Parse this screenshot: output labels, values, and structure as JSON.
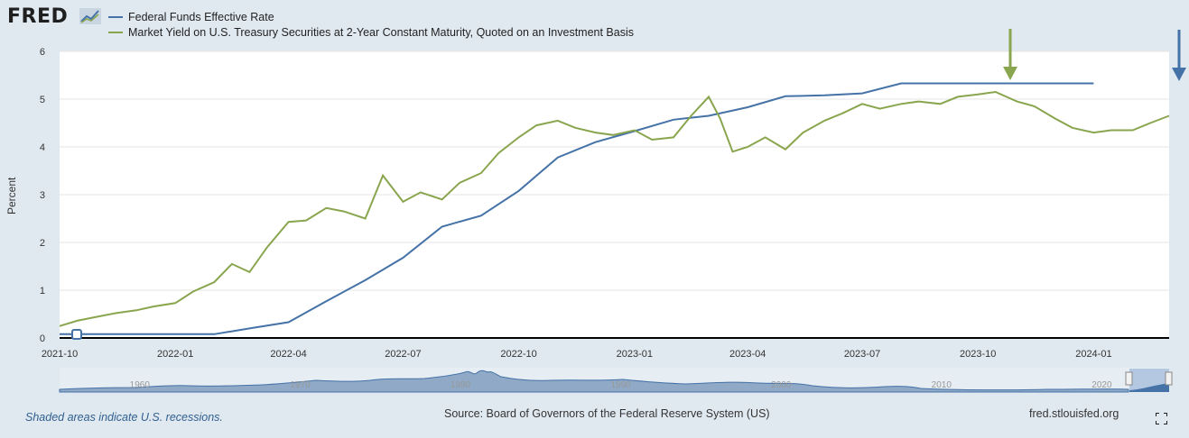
{
  "brand": {
    "logo_text": "FRED",
    "logo_icon": "fred-chart-icon"
  },
  "legend": [
    {
      "label": "Federal Funds Effective Rate",
      "color": "#4572a7"
    },
    {
      "label": "Market Yield on U.S. Treasury Securities at 2-Year Constant Maturity, Quoted on an Investment Basis",
      "color": "#89a54e"
    }
  ],
  "footer": {
    "recession_note": "Shaded areas indicate U.S. recessions.",
    "source": "Source: Board of Governors of the Federal Reserve System (US)",
    "site": "fred.stlouisfed.org"
  },
  "chart_data": {
    "type": "line",
    "ylabel": "Percent",
    "ylim": [
      0,
      6
    ],
    "yticks": [
      0,
      1,
      2,
      3,
      4,
      5,
      6
    ],
    "x_range": [
      "2021-10-01",
      "2024-03-01"
    ],
    "xticks": [
      {
        "date": "2021-10-01",
        "label": "2021-10"
      },
      {
        "date": "2022-01-01",
        "label": "2022-01"
      },
      {
        "date": "2022-04-01",
        "label": "2022-04"
      },
      {
        "date": "2022-07-01",
        "label": "2022-07"
      },
      {
        "date": "2022-10-01",
        "label": "2022-10"
      },
      {
        "date": "2023-01-01",
        "label": "2023-01"
      },
      {
        "date": "2023-04-01",
        "label": "2023-04"
      },
      {
        "date": "2023-07-01",
        "label": "2023-07"
      },
      {
        "date": "2023-10-01",
        "label": "2023-10"
      },
      {
        "date": "2024-01-01",
        "label": "2024-01"
      }
    ],
    "grid": true,
    "series": [
      {
        "name": "Federal Funds Effective Rate",
        "color": "#4572a7",
        "points": [
          [
            "2021-10-01",
            0.08
          ],
          [
            "2022-02-01",
            0.08
          ],
          [
            "2022-03-01",
            0.2
          ],
          [
            "2022-04-01",
            0.33
          ],
          [
            "2022-05-01",
            0.77
          ],
          [
            "2022-06-01",
            1.21
          ],
          [
            "2022-07-01",
            1.68
          ],
          [
            "2022-08-01",
            2.33
          ],
          [
            "2022-09-01",
            2.56
          ],
          [
            "2022-10-01",
            3.08
          ],
          [
            "2022-11-01",
            3.78
          ],
          [
            "2022-12-01",
            4.1
          ],
          [
            "2023-01-01",
            4.33
          ],
          [
            "2023-02-01",
            4.57
          ],
          [
            "2023-03-01",
            4.65
          ],
          [
            "2023-04-01",
            4.83
          ],
          [
            "2023-05-01",
            5.06
          ],
          [
            "2023-06-01",
            5.08
          ],
          [
            "2023-07-01",
            5.12
          ],
          [
            "2023-08-01",
            5.33
          ],
          [
            "2023-09-01",
            5.33
          ],
          [
            "2023-10-01",
            5.33
          ],
          [
            "2023-11-01",
            5.33
          ],
          [
            "2023-12-01",
            5.33
          ],
          [
            "2024-01-01",
            5.33
          ]
        ]
      },
      {
        "name": "Market Yield on U.S. Treasury Securities at 2-Year Constant Maturity, Quoted on an Investment Basis",
        "color": "#89a54e",
        "points": [
          [
            "2021-10-01",
            0.25
          ],
          [
            "2021-10-15",
            0.36
          ],
          [
            "2021-11-01",
            0.45
          ],
          [
            "2021-11-15",
            0.52
          ],
          [
            "2021-12-01",
            0.58
          ],
          [
            "2021-12-15",
            0.66
          ],
          [
            "2022-01-01",
            0.73
          ],
          [
            "2022-01-15",
            0.97
          ],
          [
            "2022-02-01",
            1.17
          ],
          [
            "2022-02-15",
            1.55
          ],
          [
            "2022-03-01",
            1.38
          ],
          [
            "2022-03-15",
            1.9
          ],
          [
            "2022-04-01",
            2.43
          ],
          [
            "2022-04-15",
            2.46
          ],
          [
            "2022-05-01",
            2.72
          ],
          [
            "2022-05-15",
            2.65
          ],
          [
            "2022-06-01",
            2.5
          ],
          [
            "2022-06-15",
            3.4
          ],
          [
            "2022-07-01",
            2.85
          ],
          [
            "2022-07-15",
            3.05
          ],
          [
            "2022-08-01",
            2.9
          ],
          [
            "2022-08-15",
            3.25
          ],
          [
            "2022-09-01",
            3.45
          ],
          [
            "2022-09-15",
            3.87
          ],
          [
            "2022-10-01",
            4.2
          ],
          [
            "2022-10-15",
            4.45
          ],
          [
            "2022-11-01",
            4.55
          ],
          [
            "2022-11-15",
            4.4
          ],
          [
            "2022-12-01",
            4.3
          ],
          [
            "2022-12-15",
            4.25
          ],
          [
            "2023-01-01",
            4.35
          ],
          [
            "2023-01-15",
            4.15
          ],
          [
            "2023-02-01",
            4.2
          ],
          [
            "2023-02-15",
            4.65
          ],
          [
            "2023-03-01",
            5.05
          ],
          [
            "2023-03-10",
            4.6
          ],
          [
            "2023-03-20",
            3.9
          ],
          [
            "2023-04-01",
            4.0
          ],
          [
            "2023-04-15",
            4.2
          ],
          [
            "2023-05-01",
            3.95
          ],
          [
            "2023-05-15",
            4.3
          ],
          [
            "2023-06-01",
            4.55
          ],
          [
            "2023-06-15",
            4.7
          ],
          [
            "2023-07-01",
            4.9
          ],
          [
            "2023-07-15",
            4.8
          ],
          [
            "2023-08-01",
            4.9
          ],
          [
            "2023-08-15",
            4.95
          ],
          [
            "2023-09-01",
            4.9
          ],
          [
            "2023-09-15",
            5.05
          ],
          [
            "2023-10-01",
            5.1
          ],
          [
            "2023-10-15",
            5.15
          ],
          [
            "2023-11-01",
            4.95
          ],
          [
            "2023-11-15",
            4.85
          ],
          [
            "2023-12-01",
            4.6
          ],
          [
            "2023-12-15",
            4.4
          ],
          [
            "2024-01-01",
            4.3
          ],
          [
            "2024-01-15",
            4.35
          ],
          [
            "2024-02-01",
            4.35
          ],
          [
            "2024-02-15",
            4.5
          ],
          [
            "2024-03-01",
            4.65
          ]
        ]
      }
    ],
    "navigator": {
      "labels": [
        "1960",
        "1970",
        "1980",
        "1990",
        "2000",
        "2010",
        "2020"
      ]
    }
  }
}
